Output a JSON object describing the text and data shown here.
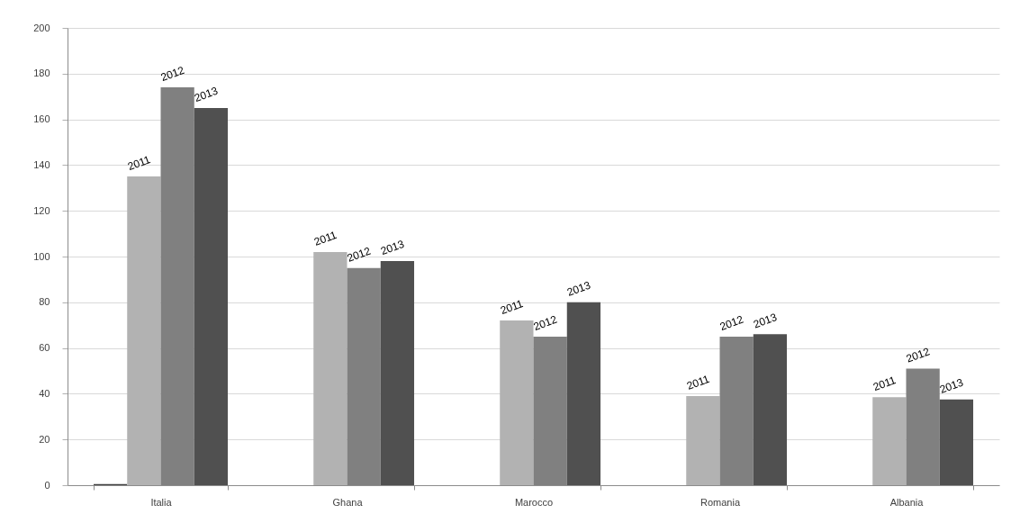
{
  "chart_data": {
    "type": "bar",
    "categories": [
      "Italia",
      "Ghana",
      "Marocco",
      "Romania",
      "Albania"
    ],
    "series": [
      {
        "color": "#404040",
        "values": [
          0.5,
          null,
          null,
          null,
          null
        ]
      },
      {
        "name": "2011",
        "color": "#b2b2b2",
        "values": [
          135,
          102,
          72,
          39,
          38.5
        ]
      },
      {
        "name": "2012",
        "color": "#808080",
        "values": [
          174,
          95,
          65,
          65,
          51
        ]
      },
      {
        "name": "2013",
        "color": "#505050",
        "values": [
          165,
          98,
          80,
          66,
          37.5
        ]
      }
    ],
    "ylim": [
      0,
      200
    ],
    "yticks": [
      0,
      20,
      40,
      60,
      80,
      100,
      120,
      140,
      160,
      180,
      200
    ],
    "grid": "y",
    "legend": false
  }
}
